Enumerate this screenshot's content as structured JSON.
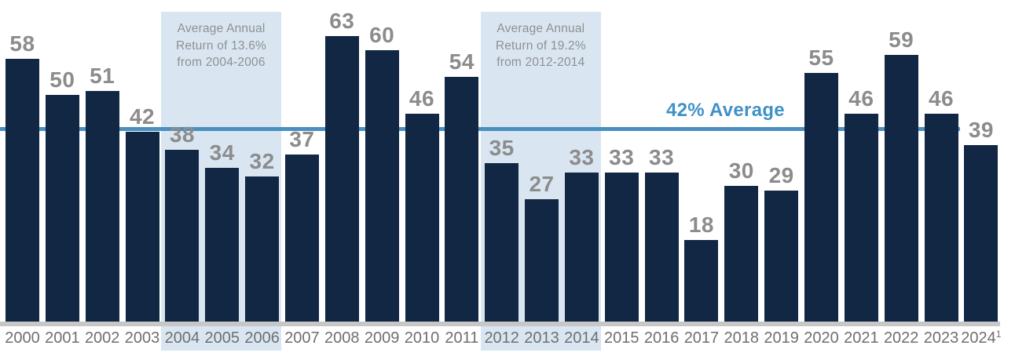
{
  "chart_data": {
    "type": "bar",
    "title": "",
    "xlabel": "",
    "ylabel": "",
    "categories": [
      "2000",
      "2001",
      "2002",
      "2003",
      "2004",
      "2005",
      "2006",
      "2007",
      "2008",
      "2009",
      "2010",
      "2011",
      "2012",
      "2013",
      "2014",
      "2015",
      "2016",
      "2017",
      "2018",
      "2019",
      "2020",
      "2021",
      "2022",
      "2023",
      "2024"
    ],
    "values": [
      58,
      50,
      51,
      42,
      38,
      34,
      32,
      37,
      63,
      60,
      46,
      54,
      35,
      27,
      33,
      33,
      33,
      18,
      30,
      29,
      55,
      46,
      59,
      46,
      39
    ],
    "ylim": [
      0,
      70
    ],
    "grid": false,
    "legend": false,
    "footnote_superscript": {
      "category": "2024",
      "marker": "1"
    },
    "average_line": {
      "value": 42,
      "label": "42% Average"
    },
    "annotations": [
      {
        "lines": [
          "Average Annual",
          "Return of 13.6%",
          "from 2004-2006"
        ],
        "start_category": "2004",
        "end_category": "2006"
      },
      {
        "lines": [
          "Average Annual",
          "Return of 19.2%",
          "from 2012-2014"
        ],
        "start_category": "2012",
        "end_category": "2014"
      }
    ]
  },
  "colors": {
    "background": "#FFFFFF",
    "bar": "#112743",
    "highlight": "#D9E6F2",
    "average_line": "#4A90BE",
    "average_label_text": "#4191C6",
    "value_label": "#8C8C8C",
    "year_label": "#6F6F6F",
    "axis": "#C7C7C7",
    "annotation_text": "#8E9091"
  }
}
